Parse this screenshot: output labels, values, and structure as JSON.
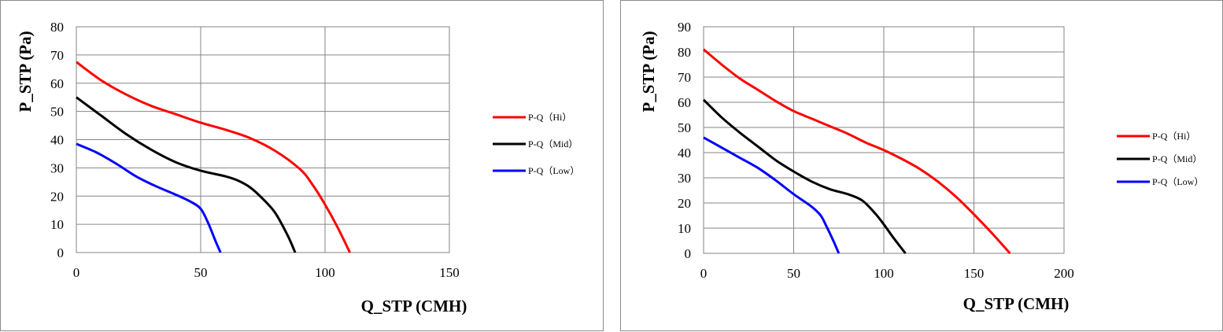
{
  "chart_data": [
    {
      "type": "line",
      "xlabel": "Q_STP (CMH)",
      "ylabel": "P_STP (Pa)",
      "xlim": [
        0,
        150
      ],
      "ylim": [
        0,
        80
      ],
      "x_ticks": [
        "0",
        "50",
        "100",
        "150"
      ],
      "y_ticks": [
        "0",
        "10",
        "20",
        "30",
        "40",
        "50",
        "60",
        "70",
        "80"
      ],
      "grid": true,
      "legend_position": "right",
      "series": [
        {
          "name": "P-Q（Hi）",
          "color": "#ff0000",
          "x": [
            0,
            10,
            20,
            30,
            40,
            50,
            60,
            70,
            80,
            90,
            95,
            100,
            105,
            110
          ],
          "y": [
            67.5,
            61,
            56,
            52,
            49,
            46,
            43.5,
            40.5,
            36,
            29.5,
            24,
            17,
            9,
            0
          ]
        },
        {
          "name": "P-Q（Mid）",
          "color": "#000000",
          "x": [
            0,
            10,
            20,
            30,
            40,
            50,
            60,
            65,
            70,
            75,
            80,
            85,
            88
          ],
          "y": [
            55,
            48.5,
            42,
            36.5,
            32,
            29,
            27,
            25.5,
            23,
            19,
            14,
            6,
            0
          ]
        },
        {
          "name": "P-Q（Low）",
          "color": "#0000ff",
          "x": [
            0,
            8,
            16,
            24,
            32,
            40,
            46,
            50,
            53,
            56,
            58
          ],
          "y": [
            38.5,
            35.5,
            31.5,
            27,
            23.5,
            20.5,
            18,
            15.5,
            10.5,
            4,
            0
          ]
        }
      ]
    },
    {
      "type": "line",
      "xlabel": "Q_STP (CMH)",
      "ylabel": "P_STP (Pa)",
      "xlim": [
        0,
        200
      ],
      "ylim": [
        0,
        90
      ],
      "x_ticks": [
        "0",
        "50",
        "100",
        "150",
        "200"
      ],
      "y_ticks": [
        "0",
        "10",
        "20",
        "30",
        "40",
        "50",
        "60",
        "70",
        "80",
        "90"
      ],
      "grid": true,
      "legend_position": "right",
      "series": [
        {
          "name": "P-Q（Hi）",
          "color": "#ff0000",
          "x": [
            0,
            10,
            20,
            30,
            40,
            50,
            60,
            70,
            80,
            90,
            100,
            110,
            120,
            130,
            140,
            150,
            160,
            170
          ],
          "y": [
            81,
            75,
            69.5,
            65,
            60.5,
            56.5,
            53.5,
            50.5,
            47.5,
            44,
            41,
            37.5,
            33.5,
            28.5,
            22.5,
            15.5,
            8,
            0
          ]
        },
        {
          "name": "P-Q（Mid）",
          "color": "#000000",
          "x": [
            0,
            10,
            20,
            30,
            40,
            50,
            60,
            70,
            80,
            88,
            95,
            100,
            105,
            112
          ],
          "y": [
            61,
            54,
            48,
            42.5,
            37,
            32.5,
            28.5,
            25.5,
            23.5,
            21,
            16,
            11.5,
            6.5,
            0
          ]
        },
        {
          "name": "P-Q（Low）",
          "color": "#0000ff",
          "x": [
            0,
            10,
            20,
            30,
            40,
            50,
            60,
            65,
            68,
            72,
            75
          ],
          "y": [
            46,
            42,
            38,
            34,
            29,
            23.5,
            18.5,
            15,
            11,
            5,
            0
          ]
        }
      ]
    }
  ]
}
